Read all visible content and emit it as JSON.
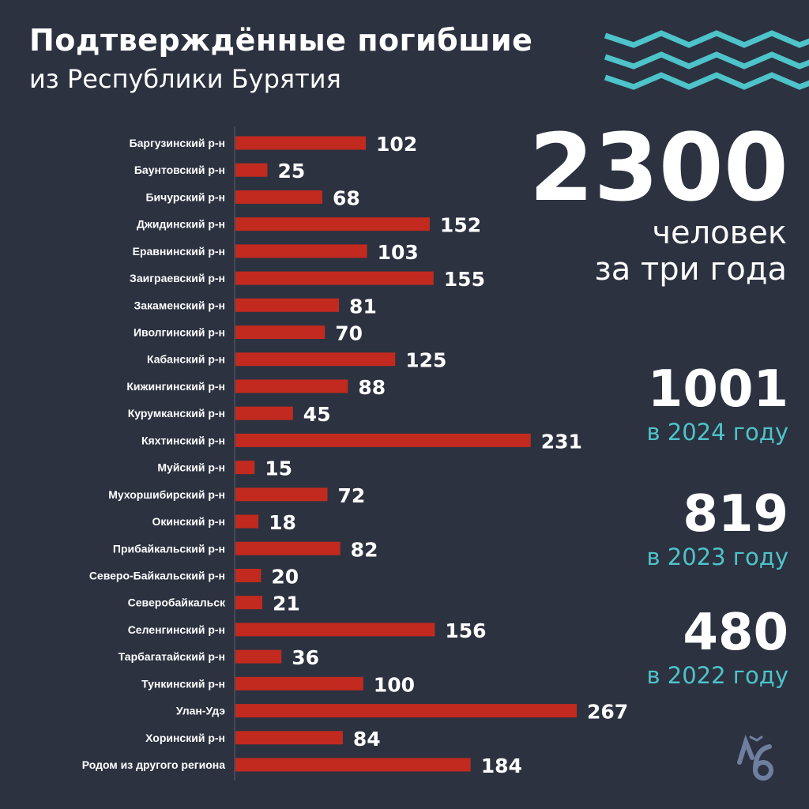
{
  "header": {
    "title": "Подтверждённые погибшие",
    "subtitle": "из Республики Бурятия"
  },
  "summary": {
    "total": "2300",
    "total_caption_1": "человек",
    "total_caption_2": "за три года",
    "years": [
      {
        "value": "1001",
        "caption": "в 2024 году"
      },
      {
        "value": "819",
        "caption": "в 2023 году"
      },
      {
        "value": "480",
        "caption": "в 2022 году"
      }
    ]
  },
  "colors": {
    "background": "#2c3240",
    "bar": "#c22a1f",
    "accent": "#4ec3c9",
    "logo": "#6e7f9f"
  },
  "icons": {
    "decoration": "zigzag-waves-icon",
    "logo": "logo-icon"
  },
  "chart_data": {
    "type": "bar",
    "orientation": "horizontal",
    "grid": false,
    "categories": [
      "Баргузинский р-н",
      "Баунтовский р-н",
      "Бичурский р-н",
      "Джидинский р-н",
      "Еравнинский р-н",
      "Заиграевский р-н",
      "Закаменский р-н",
      "Иволгинский р-н",
      "Кабанский р-н",
      "Кижингинский р-н",
      "Курумканский р-н",
      "Кяхтинский р-н",
      "Муйский р-н",
      "Мухоршибирский р-н",
      "Окинский р-н",
      "Прибайкальский р-н",
      "Северо-Байкальский р-н",
      "Северобайкальск",
      "Селенгинский р-н",
      "Тарбагатайский р-н",
      "Тункинский р-н",
      "Улан-Удэ",
      "Хоринский р-н",
      "Родом из другого региона"
    ],
    "values": [
      102,
      25,
      68,
      152,
      103,
      155,
      81,
      70,
      125,
      88,
      45,
      231,
      15,
      72,
      18,
      82,
      20,
      21,
      156,
      36,
      100,
      267,
      84,
      184
    ],
    "xlim": [
      0,
      267
    ]
  }
}
